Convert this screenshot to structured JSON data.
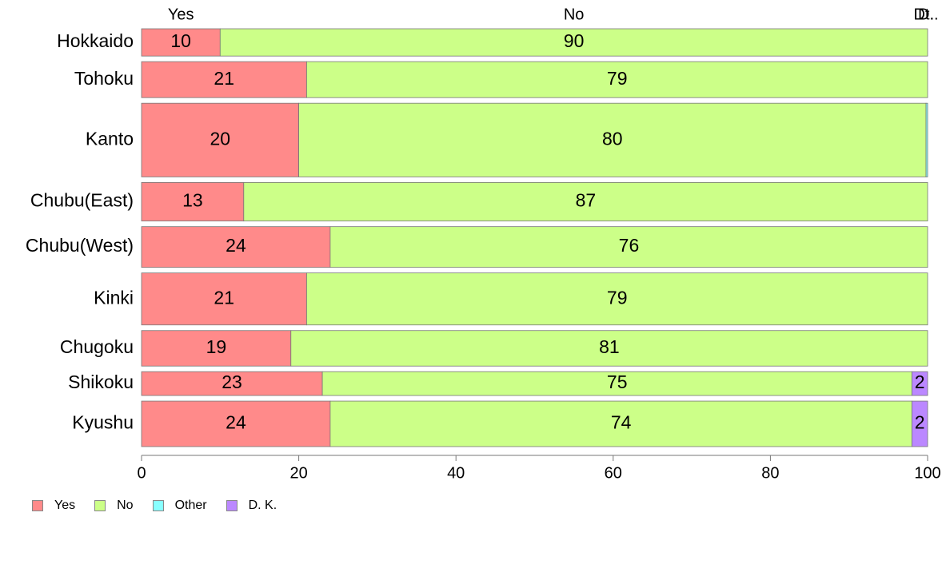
{
  "chart_data": {
    "type": "bar",
    "orientation": "horizontal",
    "stacked": true,
    "normalized_percent": true,
    "categories": [
      "Hokkaido",
      "Tohoku",
      "Kanto",
      "Chubu(East)",
      "Chubu(West)",
      "Kinki",
      "Chugoku",
      "Shikoku",
      "Kyushu"
    ],
    "bar_weights": [
      0.63,
      0.83,
      1.7,
      0.89,
      0.94,
      1.2,
      0.82,
      0.55,
      1.05
    ],
    "series": [
      {
        "name": "Yes",
        "color": "#ff8a8a",
        "values": [
          10,
          21,
          20,
          13,
          24,
          21,
          19,
          23,
          24
        ],
        "labels": [
          "10",
          "21",
          "20",
          "13",
          "24",
          "21",
          "19",
          "23",
          "24"
        ]
      },
      {
        "name": "No",
        "color": "#ccff88",
        "values": [
          90,
          79,
          79.8,
          87,
          76,
          79,
          81,
          75,
          74
        ],
        "labels": [
          "90",
          "79",
          "80",
          "87",
          "76",
          "79",
          "81",
          "75",
          "74"
        ]
      },
      {
        "name": "Other",
        "color": "#88ffff",
        "values": [
          0,
          0,
          0.2,
          0,
          0,
          0,
          0,
          0,
          0
        ],
        "labels": [
          "",
          "",
          "",
          "",
          "",
          "",
          "",
          "",
          ""
        ]
      },
      {
        "name": "D. K.",
        "color": "#bb88ff",
        "values": [
          0,
          0,
          0,
          0,
          0,
          0,
          0,
          2,
          2
        ],
        "labels": [
          "",
          "",
          "",
          "",
          "",
          "",
          "",
          "2",
          "2"
        ]
      }
    ],
    "top_labels": [
      "Yes",
      "No",
      "Dt..",
      "D."
    ],
    "xlim": [
      0,
      100
    ],
    "xticks": [
      0,
      20,
      40,
      60,
      80,
      100
    ],
    "legend": {
      "position": "bottom-left",
      "entries": [
        "Yes",
        "No",
        "Other",
        "D. K."
      ]
    },
    "grid": false
  }
}
